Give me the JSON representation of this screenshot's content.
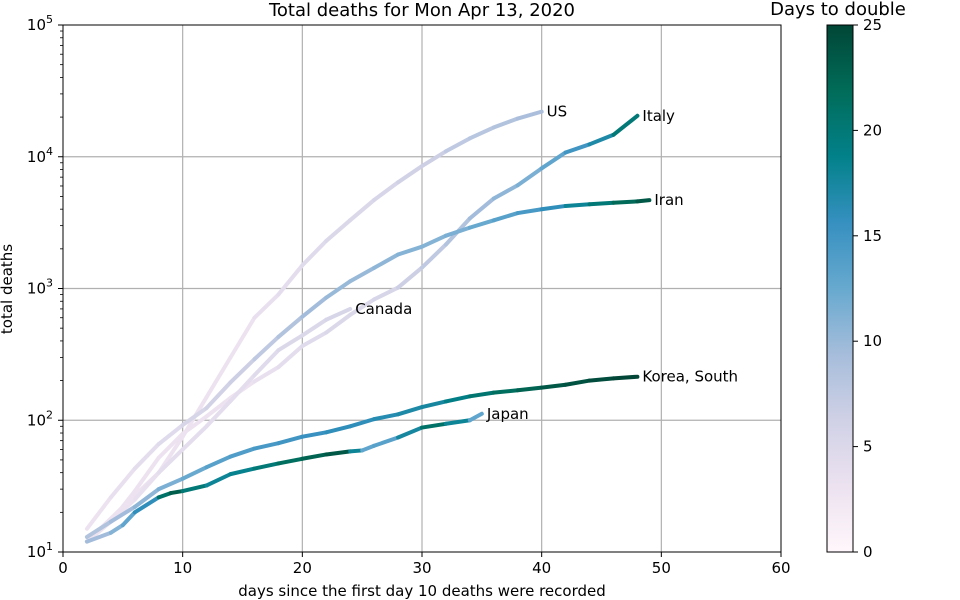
{
  "chart_data": {
    "type": "line",
    "title": "Total deaths for Mon Apr 13, 2020",
    "xlabel": "days since the first day 10 deaths were recorded",
    "ylabel": "total deaths",
    "xlim": [
      0,
      60
    ],
    "ylim": [
      10,
      100000
    ],
    "yscale": "log",
    "x_ticks": [
      0,
      10,
      20,
      30,
      40,
      50,
      60
    ],
    "y_ticks": [
      {
        "value": 10,
        "base": "10",
        "exp": "1"
      },
      {
        "value": 100,
        "base": "10",
        "exp": "2"
      },
      {
        "value": 1000,
        "base": "10",
        "exp": "3"
      },
      {
        "value": 10000,
        "base": "10",
        "exp": "4"
      },
      {
        "value": 100000,
        "base": "10",
        "exp": "5"
      }
    ],
    "grid": true,
    "colorbar": {
      "title": "Days to double",
      "min": 0,
      "max": 25,
      "ticks": [
        0,
        5,
        10,
        15,
        20,
        25
      ],
      "colormap": [
        "#fff7fb",
        "#ece2f0",
        "#d0d1e6",
        "#a6bddb",
        "#67a9cf",
        "#3690c0",
        "#02818a",
        "#016c59",
        "#014636"
      ]
    },
    "series": [
      {
        "name": "US",
        "x": [
          2,
          5,
          8,
          10,
          12,
          14,
          16,
          18,
          20,
          22,
          24,
          26,
          28,
          30,
          32,
          34,
          36,
          38,
          40
        ],
        "y": [
          12,
          22,
          40,
          75,
          150,
          300,
          600,
          900,
          1500,
          2300,
          3300,
          4700,
          6400,
          8500,
          11000,
          13800,
          16700,
          19500,
          22000
        ],
        "doubling": [
          3,
          3,
          3,
          3,
          3,
          3,
          3,
          4,
          4,
          5,
          5,
          5,
          6,
          6,
          7,
          8,
          8,
          9,
          9
        ]
      },
      {
        "name": "Italy",
        "x": [
          2,
          4,
          6,
          8,
          10,
          12,
          14,
          16,
          18,
          20,
          22,
          24,
          26,
          28,
          30,
          32,
          34,
          36,
          38,
          40,
          42,
          44,
          46,
          48
        ],
        "y": [
          12,
          17,
          29,
          52,
          79,
          107,
          148,
          197,
          253,
          366,
          463,
          631,
          827,
          1016,
          1441,
          2158,
          3405,
          4825,
          6077,
          8165,
          10779,
          12428,
          14681,
          20465
        ],
        "doubling": [
          3,
          3,
          3,
          3,
          3,
          3,
          3,
          3,
          4,
          4,
          5,
          5,
          5,
          6,
          7,
          8,
          9,
          10,
          11,
          12,
          14,
          16,
          18,
          22
        ]
      },
      {
        "name": "Iran",
        "x": [
          2,
          4,
          6,
          8,
          10,
          12,
          14,
          16,
          18,
          20,
          22,
          24,
          26,
          28,
          30,
          32,
          34,
          36,
          38,
          40,
          42,
          44,
          46,
          48,
          49
        ],
        "y": [
          15,
          26,
          43,
          66,
          92,
          124,
          194,
          291,
          429,
          611,
          853,
          1135,
          1433,
          1812,
          2077,
          2517,
          2898,
          3294,
          3739,
          3993,
          4232,
          4357,
          4474,
          4585,
          4683
        ],
        "doubling": [
          3,
          3,
          4,
          4,
          5,
          6,
          6,
          7,
          8,
          9,
          10,
          10,
          10,
          11,
          11,
          11,
          12,
          13,
          14,
          15,
          17,
          19,
          21,
          23,
          24
        ]
      },
      {
        "name": "Canada",
        "x": [
          2,
          4,
          6,
          8,
          10,
          12,
          14,
          16,
          18,
          20,
          22,
          24
        ],
        "y": [
          12,
          17,
          25,
          40,
          60,
          90,
          140,
          220,
          340,
          440,
          580,
          700
        ],
        "doubling": [
          3,
          3,
          3,
          4,
          4,
          4,
          4,
          4,
          5,
          5,
          5,
          6
        ]
      },
      {
        "name": "Korea, South",
        "x": [
          2,
          4,
          6,
          8,
          10,
          12,
          14,
          16,
          18,
          20,
          22,
          24,
          26,
          28,
          30,
          32,
          34,
          36,
          38,
          40,
          42,
          44,
          46,
          48
        ],
        "y": [
          13,
          17,
          22,
          30,
          36,
          44,
          53,
          61,
          67,
          75,
          81,
          90,
          102,
          111,
          126,
          139,
          152,
          162,
          169,
          177,
          186,
          200,
          208,
          214
        ],
        "doubling": [
          8,
          9,
          10,
          11,
          12,
          13,
          14,
          14,
          15,
          15,
          16,
          16,
          16,
          17,
          17,
          18,
          20,
          21,
          22,
          23,
          24,
          24,
          25,
          25
        ]
      },
      {
        "name": "Japan",
        "x": [
          2,
          4,
          5,
          6,
          8,
          9,
          10,
          12,
          14,
          16,
          18,
          20,
          22,
          24,
          25,
          26,
          28,
          30,
          32,
          34,
          35
        ],
        "y": [
          12,
          14,
          16,
          20,
          26,
          28,
          29,
          32,
          39,
          43,
          47,
          51,
          55,
          58,
          59,
          64,
          74,
          88,
          94,
          100,
          112
        ],
        "doubling": [
          9,
          10,
          12,
          14,
          18,
          24,
          22,
          18,
          18,
          19,
          21,
          22,
          23,
          24,
          12,
          14,
          13,
          22,
          20,
          16,
          10
        ]
      }
    ]
  }
}
